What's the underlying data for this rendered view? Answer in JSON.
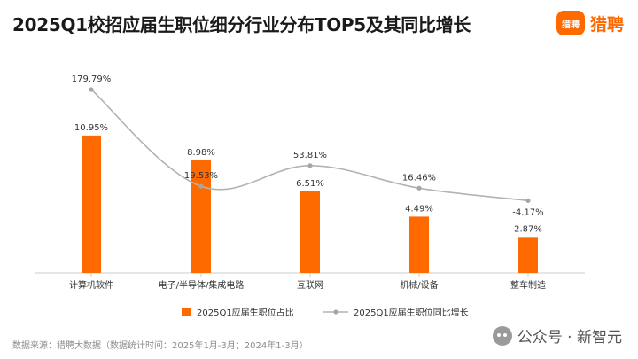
{
  "header": {
    "title": "2025Q1校招应届生职位细分行业分布TOP5及其同比增长",
    "brand_logo_text": "猎聘",
    "brand_name": "猎聘"
  },
  "footer": {
    "source": "数据来源：猎聘大数据（数据统计时间：2025年1月-3月；2024年1-3月）",
    "watermark": "公众号 · 新智元"
  },
  "colors": {
    "bar": "#ff6a00",
    "line": "#b3b3b3",
    "axis": "#cccccc",
    "label": "#333333"
  },
  "chart_data": {
    "type": "bar",
    "categories": [
      "计算机软件",
      "电子/半导体/集成电路",
      "互联网",
      "机械/设备",
      "整车制造"
    ],
    "series": [
      {
        "name": "2025Q1应届生职位占比",
        "type": "bar",
        "values": [
          10.95,
          8.98,
          6.51,
          4.49,
          2.87
        ],
        "labels": [
          "10.95%",
          "8.98%",
          "6.51%",
          "4.49%",
          "2.87%"
        ]
      },
      {
        "name": "2025Q1应届生职位同比增长",
        "type": "line",
        "values": [
          179.79,
          19.53,
          53.81,
          16.46,
          -4.17
        ],
        "labels": [
          "179.79%",
          "19.53%",
          "53.81%",
          "16.46%",
          "-4.17%"
        ]
      }
    ],
    "bar_axis_range": [
      0,
      12
    ],
    "line_axis_range": [
      -80,
      240
    ],
    "grid": false,
    "legend_position": "bottom"
  }
}
